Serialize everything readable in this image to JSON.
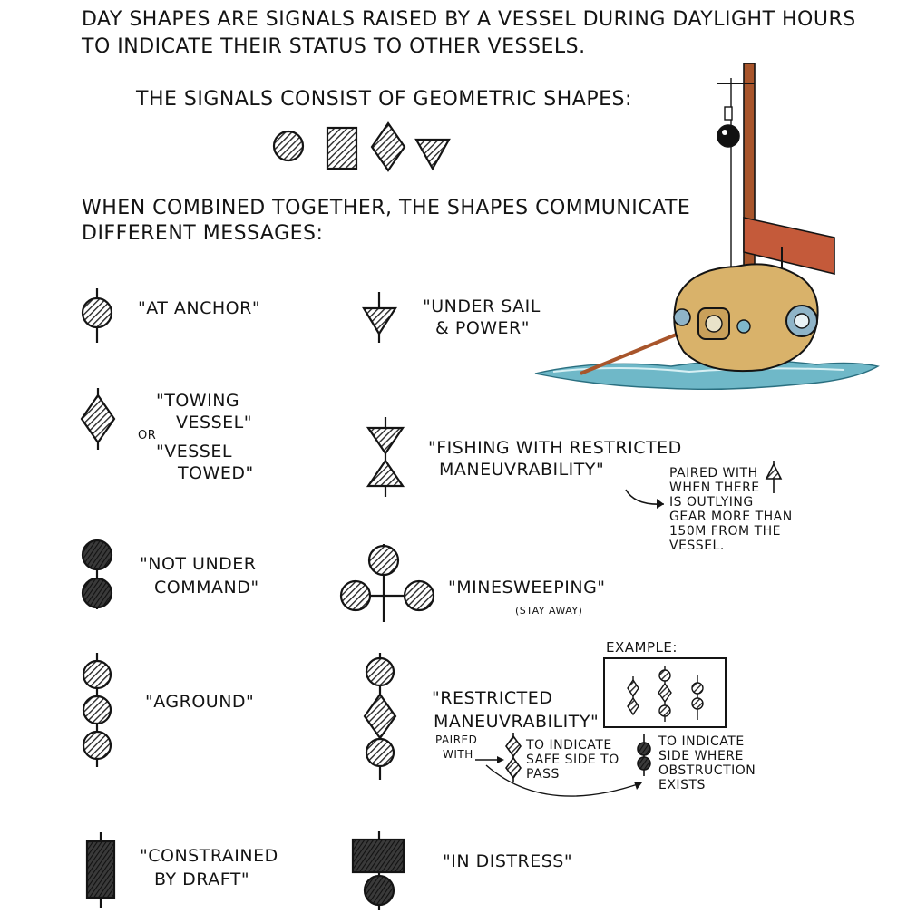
{
  "intro": {
    "line1": "DAY SHAPES ARE SIGNALS RAISED BY A VESSEL DURING DAYLIGHT HOURS",
    "line2": "TO INDICATE THEIR STATUS TO OTHER VESSELS."
  },
  "shapes_intro": "THE SIGNALS CONSIST OF GEOMETRIC SHAPES:",
  "combined": {
    "line1": "WHEN COMBINED TOGETHER, THE SHAPES COMMUNICATE",
    "line2": "DIFFERENT MESSAGES:"
  },
  "signals": {
    "at_anchor": "\"AT ANCHOR\"",
    "under_sail_1": "\"UNDER SAIL",
    "under_sail_2": "& POWER\"",
    "towing_1": "\"TOWING",
    "towing_2": "VESSEL\"",
    "or": "OR",
    "towed_1": "\"VESSEL",
    "towed_2": "TOWED\"",
    "fishing_1": "\"FISHING WITH RESTRICTED",
    "fishing_2": "MANEUVRABILITY\"",
    "not_under_command_1": "\"NOT UNDER",
    "not_under_command_2": "COMMAND\"",
    "minesweeping": "\"MINESWEEPING\"",
    "stay_away": "(STAY AWAY)",
    "aground": "\"AGROUND\"",
    "restricted_1": "\"RESTRICTED",
    "restricted_2": "MANEUVRABILITY\"",
    "constrained_1": "\"CONSTRAINED",
    "constrained_2": "BY DRAFT\"",
    "distress": "\"IN DISTRESS\""
  },
  "notes": {
    "fishing_note": [
      "PAIRED WITH",
      "WHEN THERE",
      "IS OUTLYING",
      "GEAR MORE THAN",
      "150M FROM THE",
      "VESSEL."
    ],
    "example": "EXAMPLE:",
    "paired_with_1": "PAIRED",
    "paired_with_2": "WITH",
    "safe_side": [
      "TO INDICATE",
      "SAFE SIDE TO",
      "PASS"
    ],
    "obstruction_side": [
      "TO INDICATE",
      "SIDE WHERE",
      "OBSTRUCTION",
      "EXISTS"
    ]
  },
  "colors": {
    "ink": "#141414",
    "hatch": "#555555",
    "boat_hull": "#d9b26a",
    "mast": "#a8552b",
    "water": "#6fb8c8",
    "porthole": "#8fb4c8"
  }
}
